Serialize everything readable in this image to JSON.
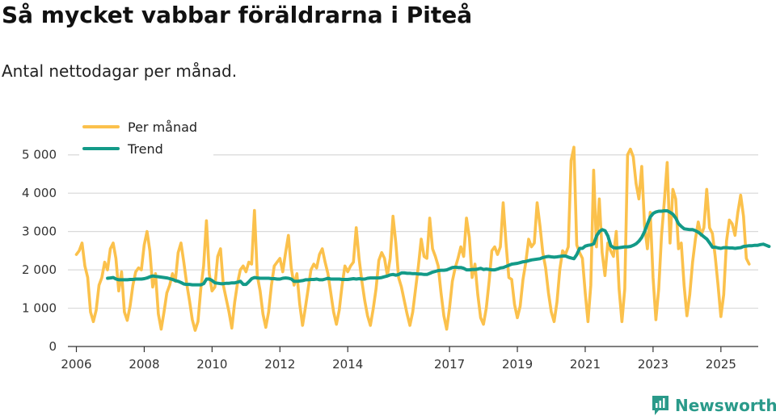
{
  "header": {
    "title": "Så mycket vabbar föräldrarna i Piteå",
    "subtitle": "Antal nettodagar per månad."
  },
  "brand": {
    "name": "Newsworthy",
    "icon": "bar-chart-logo-icon"
  },
  "colors": {
    "monthly": "#fbc14c",
    "trend": "#139a88",
    "grid": "#d9d9d9",
    "brand": "#2a9a8a"
  },
  "chart_data": {
    "type": "line",
    "title": "Så mycket vabbar föräldrarna i Piteå",
    "subtitle": "Antal nettodagar per månad.",
    "xlabel": "",
    "ylabel": "",
    "ylim": [
      0,
      5500
    ],
    "xlim": [
      2005.75,
      2026.1
    ],
    "y_ticks": [
      0,
      1000,
      2000,
      3000,
      4000,
      5000
    ],
    "y_tick_labels": [
      "0",
      "1 000",
      "2 000",
      "3 000",
      "4 000",
      "5 000"
    ],
    "x_ticks": [
      2006,
      2008,
      2010,
      2012,
      2014,
      2017,
      2019,
      2021,
      2023,
      2025
    ],
    "x_tick_labels": [
      "2006",
      "2008",
      "2010",
      "2012",
      "2014",
      "2017",
      "2019",
      "2021",
      "2023",
      "2025"
    ],
    "grid": true,
    "legend_position": "top-left",
    "series": [
      {
        "name": "Per månad",
        "x_start": 2006.0,
        "step": 0.08333,
        "values": [
          2400,
          2500,
          2700,
          2100,
          1800,
          900,
          650,
          950,
          1600,
          1800,
          2200,
          2000,
          2550,
          2700,
          2300,
          1450,
          1950,
          900,
          680,
          1050,
          1600,
          1950,
          2050,
          2000,
          2650,
          3000,
          2500,
          1550,
          1900,
          850,
          450,
          900,
          1400,
          1600,
          1900,
          1700,
          2450,
          2700,
          2200,
          1650,
          1200,
          700,
          420,
          650,
          1500,
          2100,
          3280,
          1900,
          1450,
          1550,
          2350,
          2550,
          1600,
          1250,
          900,
          480,
          1150,
          1650,
          2000,
          2100,
          1950,
          2200,
          2150,
          3550,
          1850,
          1450,
          850,
          500,
          900,
          1600,
          2100,
          2200,
          2300,
          1950,
          2450,
          2900,
          2050,
          1600,
          1900,
          1100,
          550,
          1000,
          1500,
          2000,
          2150,
          2050,
          2400,
          2550,
          2200,
          1900,
          1400,
          900,
          580,
          950,
          1600,
          2100,
          1950,
          2100,
          2200,
          3100,
          2300,
          1700,
          1200,
          800,
          550,
          980,
          1500,
          2250,
          2450,
          2300,
          1850,
          2300,
          3400,
          2700,
          1800,
          1550,
          1200,
          850,
          550,
          900,
          1500,
          2100,
          2800,
          2350,
          2300,
          3350,
          2550,
          2350,
          2100,
          1400,
          800,
          450,
          1000,
          1700,
          2050,
          2300,
          2600,
          2350,
          3350,
          2850,
          1800,
          2150,
          1350,
          750,
          580,
          1000,
          1700,
          2500,
          2600,
          2400,
          2600,
          3750,
          2700,
          1800,
          1750,
          1100,
          750,
          1050,
          1750,
          2200,
          2800,
          2600,
          2700,
          3750,
          3150,
          2450,
          2050,
          1400,
          900,
          650,
          1150,
          2000,
          2500,
          2400,
          2600,
          4850,
          5200,
          2650,
          2450,
          2300,
          1400,
          650,
          1600,
          4600,
          2600,
          3850,
          2450,
          1850,
          2700,
          2500,
          2350,
          3000,
          1500,
          650,
          1500,
          5000,
          5150,
          4950,
          4250,
          3850,
          4700,
          3150,
          2550,
          3500,
          1800,
          700,
          1500,
          2900,
          3800,
          4800,
          2700,
          4100,
          3850,
          2550,
          2700,
          1600,
          800,
          1350,
          2200,
          2800,
          3250,
          2900,
          3100,
          4100,
          3100,
          2950,
          2350,
          1600,
          780,
          1350,
          2750,
          3300,
          3200,
          2900,
          3500,
          3950,
          3400,
          2300,
          2150
        ]
      },
      {
        "name": "Trend",
        "x_start": 2006.92,
        "step": 0.08333,
        "values": [
          1780,
          1790,
          1800,
          1760,
          1740,
          1740,
          1740,
          1740,
          1750,
          1750,
          1760,
          1760,
          1760,
          1770,
          1790,
          1820,
          1840,
          1830,
          1820,
          1810,
          1800,
          1790,
          1770,
          1750,
          1720,
          1700,
          1670,
          1630,
          1620,
          1620,
          1610,
          1610,
          1610,
          1610,
          1640,
          1760,
          1760,
          1720,
          1660,
          1650,
          1640,
          1640,
          1650,
          1650,
          1660,
          1660,
          1680,
          1700,
          1620,
          1620,
          1690,
          1770,
          1800,
          1790,
          1780,
          1780,
          1780,
          1780,
          1770,
          1770,
          1760,
          1760,
          1780,
          1790,
          1780,
          1760,
          1700,
          1700,
          1710,
          1720,
          1740,
          1740,
          1750,
          1750,
          1760,
          1740,
          1740,
          1760,
          1780,
          1760,
          1760,
          1760,
          1760,
          1750,
          1750,
          1750,
          1760,
          1770,
          1760,
          1770,
          1760,
          1760,
          1780,
          1790,
          1790,
          1790,
          1790,
          1800,
          1820,
          1840,
          1870,
          1880,
          1860,
          1880,
          1920,
          1920,
          1910,
          1910,
          1900,
          1900,
          1890,
          1890,
          1880,
          1880,
          1910,
          1940,
          1960,
          1980,
          1990,
          1990,
          2000,
          2030,
          2060,
          2070,
          2060,
          2060,
          2040,
          2000,
          2000,
          2010,
          2010,
          2020,
          2040,
          2010,
          2020,
          2010,
          2000,
          2000,
          2020,
          2050,
          2060,
          2090,
          2120,
          2150,
          2160,
          2170,
          2190,
          2210,
          2220,
          2240,
          2260,
          2270,
          2280,
          2290,
          2320,
          2340,
          2350,
          2340,
          2330,
          2340,
          2350,
          2360,
          2360,
          2330,
          2310,
          2290,
          2400,
          2560,
          2560,
          2620,
          2640,
          2650,
          2680,
          2890,
          3000,
          3050,
          3020,
          2880,
          2630,
          2580,
          2570,
          2580,
          2590,
          2600,
          2600,
          2610,
          2640,
          2680,
          2750,
          2850,
          3000,
          3200,
          3380,
          3470,
          3510,
          3530,
          3530,
          3540,
          3540,
          3500,
          3450,
          3350,
          3200,
          3130,
          3070,
          3060,
          3050,
          3050,
          3020,
          2980,
          2920,
          2860,
          2800,
          2700,
          2590,
          2590,
          2570,
          2560,
          2580,
          2580,
          2570,
          2570,
          2560,
          2570,
          2580,
          2610,
          2620,
          2630,
          2630,
          2640,
          2640,
          2660,
          2670,
          2640,
          2610
        ]
      }
    ]
  }
}
